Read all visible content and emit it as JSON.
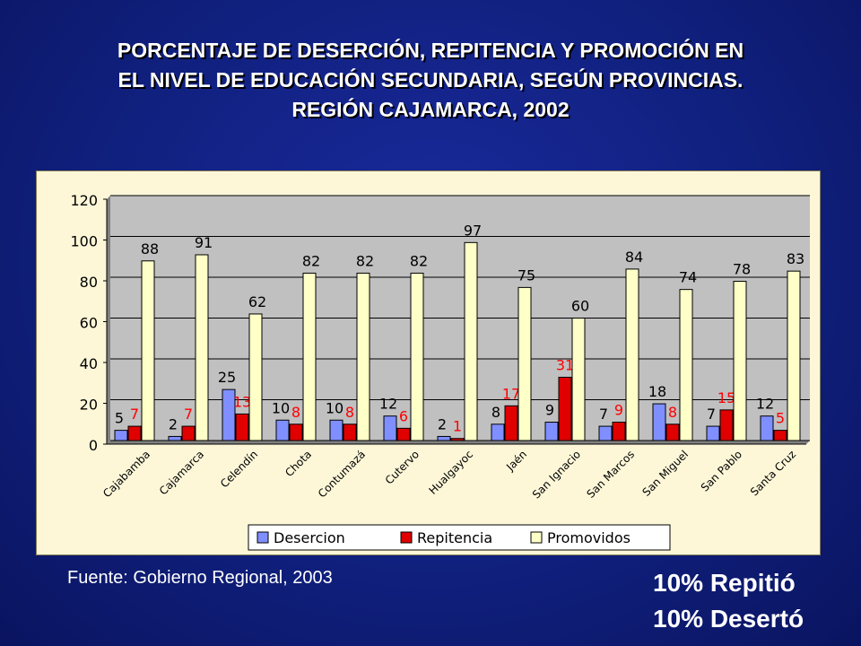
{
  "slide": {
    "title_lines": [
      "PORCENTAJE DE DESERCIÓN, REPITENCIA Y PROMOCIÓN EN",
      "EL NIVEL DE EDUCACIÓN SECUNDARIA, SEGÚN PROVINCIAS.",
      "REGIÓN CAJAMARCA, 2002"
    ],
    "source": "Fuente: Gobierno Regional, 2003",
    "stat_repitio": "10% Repitió",
    "stat_deserto": "10% Desertó"
  },
  "chart_data": {
    "type": "bar",
    "categories": [
      "Cajabamba",
      "Cajamarca",
      "Celendín",
      "Chota",
      "Contumazá",
      "Cutervo",
      "Hualgayoc",
      "Jaén",
      "San Ignacio",
      "San Marcos",
      "San Miguel",
      "San Pablo",
      "Santa Cruz"
    ],
    "series": [
      {
        "name": "Desercion",
        "values": [
          5,
          2,
          25,
          10,
          10,
          12,
          2,
          8,
          9,
          7,
          18,
          7,
          12
        ],
        "color": "#7f8fff",
        "label_color": "#000000"
      },
      {
        "name": "Repitencia",
        "values": [
          7,
          7,
          13,
          8,
          8,
          6,
          1,
          17,
          31,
          9,
          8,
          15,
          5
        ],
        "color": "#e00000",
        "label_color": "#ff0000"
      },
      {
        "name": "Promovidos",
        "values": [
          88,
          91,
          62,
          82,
          82,
          82,
          97,
          75,
          60,
          84,
          74,
          78,
          83
        ],
        "color": "#ffffc8",
        "label_color": "#000000"
      }
    ],
    "ylim": [
      0,
      120
    ],
    "yticks": [
      0,
      20,
      40,
      60,
      80,
      100,
      120
    ],
    "grid": true,
    "legend_position": "bottom"
  }
}
